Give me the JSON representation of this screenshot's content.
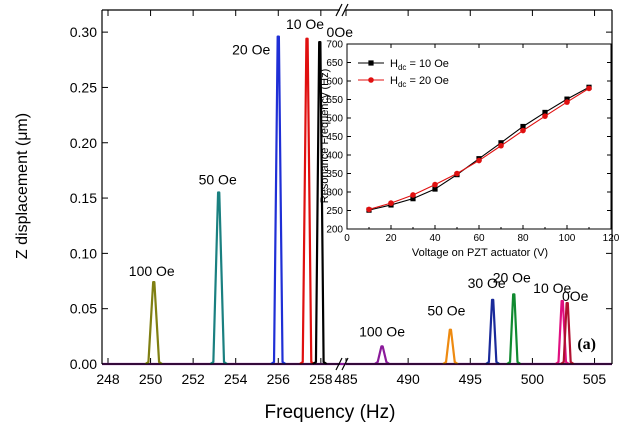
{
  "chart_data": [
    {
      "type": "line",
      "xlabel": "Frequency (Hz)",
      "ylabel": "Z displacement (μm)",
      "panel_label": "(a)",
      "ylim": [
        0,
        0.32
      ],
      "y_ticks": [
        "0.00",
        "0.05",
        "0.10",
        "0.15",
        "0.20",
        "0.25",
        "0.30"
      ],
      "x_break": true,
      "x_segments": [
        {
          "xlim": [
            248,
            258.9
          ],
          "ticks": [
            "248",
            "250",
            "252",
            "254",
            "256",
            "258"
          ]
        },
        {
          "xlim": [
            485,
            505.6
          ],
          "ticks": [
            "485",
            "490",
            "495",
            "500",
            "505"
          ]
        }
      ],
      "series": [
        {
          "label": "100 Oe",
          "color": "#7f7f12",
          "segment": 0,
          "peak_x": 250.15,
          "peak_y": 0.074,
          "half_width": 0.25
        },
        {
          "label": "50 Oe",
          "color": "#1a8080",
          "segment": 0,
          "peak_x": 253.2,
          "peak_y": 0.155,
          "half_width": 0.25
        },
        {
          "label": "20 Oe",
          "color": "#1f2fd6",
          "segment": 0,
          "peak_x": 256.0,
          "peak_y": 0.296,
          "half_width": 0.2
        },
        {
          "label": "10 Oe",
          "color": "#e01010",
          "segment": 0,
          "peak_x": 257.35,
          "peak_y": 0.294,
          "half_width": 0.2
        },
        {
          "label": "0Oe",
          "color": "#000000",
          "segment": 0,
          "peak_x": 257.95,
          "peak_y": 0.291,
          "half_width": 0.18
        },
        {
          "label": "100 Oe",
          "color": "#8a1a9a",
          "segment": 1,
          "peak_x": 487.9,
          "peak_y": 0.016,
          "half_width": 0.35
        },
        {
          "label": "50 Oe",
          "color": "#ee8a10",
          "segment": 1,
          "peak_x": 493.4,
          "peak_y": 0.031,
          "half_width": 0.35
        },
        {
          "label": "30 Oe",
          "color": "#1a2a9a",
          "segment": 1,
          "peak_x": 496.8,
          "peak_y": 0.058,
          "half_width": 0.3
        },
        {
          "label": "20 Oe",
          "color": "#108a30",
          "segment": 1,
          "peak_x": 498.5,
          "peak_y": 0.063,
          "half_width": 0.3
        },
        {
          "label": "10 Oe",
          "color": "#e01080",
          "segment": 1,
          "peak_x": 502.4,
          "peak_y": 0.057,
          "half_width": 0.3
        },
        {
          "label": "0Oe",
          "color": "#b01030",
          "segment": 1,
          "peak_x": 502.8,
          "peak_y": 0.055,
          "half_width": 0.28
        }
      ],
      "baseline_color": "#8a1a9a"
    },
    {
      "type": "line",
      "xlabel": "Voltage on PZT actuator (V)",
      "ylabel": "Resonance Frequency (Hz)",
      "xlim": [
        0,
        120
      ],
      "ylim": [
        200,
        700
      ],
      "x_ticks": [
        0,
        20,
        40,
        60,
        80,
        100,
        120
      ],
      "y_ticks": [
        200,
        250,
        300,
        350,
        400,
        450,
        500,
        550,
        600,
        650,
        700
      ],
      "legend_position": "top-left",
      "series": [
        {
          "name_main": "H",
          "name_sub": "dc",
          "name_rest": " = 10 Oe",
          "color": "#000000",
          "marker": "square",
          "x": [
            10,
            20,
            30,
            40,
            50,
            60,
            70,
            80,
            90,
            100,
            110
          ],
          "y": [
            251,
            265,
            282,
            308,
            347,
            390,
            433,
            477,
            515,
            551,
            583
          ]
        },
        {
          "name_main": "H",
          "name_sub": "dc",
          "name_rest": " = 20 Oe",
          "color": "#e01010",
          "marker": "circle",
          "x": [
            10,
            20,
            30,
            40,
            50,
            60,
            70,
            80,
            90,
            100,
            110
          ],
          "y": [
            253,
            270,
            292,
            320,
            350,
            385,
            425,
            466,
            505,
            543,
            580
          ]
        }
      ]
    }
  ]
}
